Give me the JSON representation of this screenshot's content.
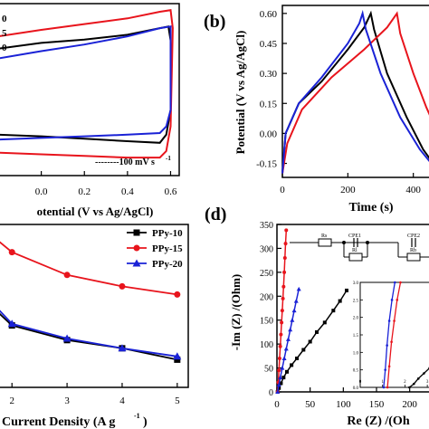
{
  "colors": {
    "black": "#000000",
    "red": "#e8141c",
    "blue": "#1a22d6"
  },
  "chart_data": [
    {
      "panel": "a",
      "type": "line",
      "xlabel": "otential (V vs Ag/AgCl)",
      "xticks": [
        "0.0",
        "0.2",
        "0.4",
        "0.6"
      ],
      "xlim": [
        -0.2,
        0.64
      ],
      "ylim": [
        -1.1,
        1.0
      ],
      "annotation": "--------100 mV s",
      "annotation_sup": "-1",
      "legend_fragments": [
        "0",
        "5",
        "0"
      ],
      "series": [
        {
          "name": "PPy-10",
          "color": "black",
          "loop": [
            [
              -0.2,
              0.45
            ],
            [
              0.0,
              0.52
            ],
            [
              0.2,
              0.56
            ],
            [
              0.4,
              0.62
            ],
            [
              0.55,
              0.7
            ],
            [
              0.59,
              0.72
            ],
            [
              0.6,
              0.55
            ],
            [
              0.6,
              -0.3
            ],
            [
              0.58,
              -0.6
            ],
            [
              0.55,
              -0.7
            ],
            [
              0.4,
              -0.68
            ],
            [
              0.2,
              -0.65
            ],
            [
              0.0,
              -0.62
            ],
            [
              -0.2,
              -0.6
            ]
          ]
        },
        {
          "name": "PPy-15",
          "color": "red",
          "loop": [
            [
              -0.2,
              0.6
            ],
            [
              0.0,
              0.68
            ],
            [
              0.2,
              0.75
            ],
            [
              0.4,
              0.82
            ],
            [
              0.55,
              0.9
            ],
            [
              0.6,
              0.92
            ],
            [
              0.61,
              0.7
            ],
            [
              0.6,
              -0.5
            ],
            [
              0.58,
              -0.8
            ],
            [
              0.55,
              -0.88
            ],
            [
              0.4,
              -0.88
            ],
            [
              0.2,
              -0.86
            ],
            [
              0.0,
              -0.84
            ],
            [
              -0.2,
              -0.82
            ]
          ]
        },
        {
          "name": "PPy-20",
          "color": "blue",
          "loop": [
            [
              -0.2,
              0.33
            ],
            [
              0.0,
              0.42
            ],
            [
              0.2,
              0.5
            ],
            [
              0.4,
              0.6
            ],
            [
              0.55,
              0.7
            ],
            [
              0.6,
              0.72
            ],
            [
              0.6,
              0.5
            ],
            [
              0.6,
              -0.3
            ],
            [
              0.58,
              -0.5
            ],
            [
              0.55,
              -0.58
            ],
            [
              0.4,
              -0.6
            ],
            [
              0.2,
              -0.62
            ],
            [
              0.0,
              -0.64
            ],
            [
              -0.2,
              -0.66
            ]
          ]
        }
      ]
    },
    {
      "panel": "b",
      "type": "line",
      "ylabel": "Potential (V vs Ag/AgCl)",
      "xlabel": "Time (s)",
      "yticks": [
        "0.60",
        "0.45",
        "0.30",
        "0.15",
        "0.00",
        "-0.15"
      ],
      "xticks": [
        "0",
        "200",
        "400"
      ],
      "xlim": [
        0,
        470
      ],
      "ylim": [
        -0.22,
        0.64
      ],
      "series": [
        {
          "name": "PPy-10",
          "color": "black",
          "points": [
            [
              0,
              -0.2
            ],
            [
              10,
              0.0
            ],
            [
              50,
              0.15
            ],
            [
              120,
              0.26
            ],
            [
              200,
              0.42
            ],
            [
              250,
              0.53
            ],
            [
              270,
              0.6
            ],
            [
              280,
              0.52
            ],
            [
              320,
              0.3
            ],
            [
              380,
              0.08
            ],
            [
              430,
              -0.08
            ],
            [
              470,
              -0.17
            ]
          ]
        },
        {
          "name": "PPy-15",
          "color": "red",
          "points": [
            [
              0,
              -0.2
            ],
            [
              15,
              -0.05
            ],
            [
              60,
              0.12
            ],
            [
              150,
              0.28
            ],
            [
              250,
              0.42
            ],
            [
              320,
              0.53
            ],
            [
              350,
              0.6
            ],
            [
              360,
              0.5
            ],
            [
              400,
              0.3
            ],
            [
              440,
              0.13
            ],
            [
              470,
              0.02
            ]
          ]
        },
        {
          "name": "PPy-20",
          "color": "blue",
          "points": [
            [
              0,
              -0.2
            ],
            [
              10,
              0.0
            ],
            [
              50,
              0.15
            ],
            [
              120,
              0.28
            ],
            [
              200,
              0.45
            ],
            [
              235,
              0.55
            ],
            [
              245,
              0.6
            ],
            [
              255,
              0.52
            ],
            [
              300,
              0.3
            ],
            [
              360,
              0.08
            ],
            [
              420,
              -0.08
            ],
            [
              470,
              -0.18
            ]
          ]
        }
      ]
    },
    {
      "panel": "c",
      "type": "line",
      "xlabel": "Current Density (A g",
      "xlabel_sup": "-1",
      "xlabel_tail": ")",
      "xticks": [
        "2",
        "3",
        "4",
        "5"
      ],
      "xlim": [
        1.75,
        5.2
      ],
      "ylim": [
        0,
        10
      ],
      "legend": [
        "PPy-10",
        "PPy-15",
        "PPy-20"
      ],
      "series": [
        {
          "name": "PPy-10",
          "color": "black",
          "marker": "square",
          "x": [
            1.75,
            2,
            3,
            4,
            5
          ],
          "y": [
            4.6,
            3.8,
            2.9,
            2.4,
            1.7
          ]
        },
        {
          "name": "PPy-15",
          "color": "red",
          "marker": "circle",
          "x": [
            1.75,
            2,
            3,
            4,
            5
          ],
          "y": [
            9.0,
            8.3,
            6.9,
            6.2,
            5.7
          ]
        },
        {
          "name": "PPy-20",
          "color": "blue",
          "marker": "triangle",
          "x": [
            1.75,
            2,
            3,
            4,
            5
          ],
          "y": [
            4.8,
            3.9,
            3.0,
            2.4,
            1.9
          ]
        }
      ]
    },
    {
      "panel": "d",
      "type": "scatter",
      "ylabel": "-Im (Z) /(Ohm)",
      "xlabel": "Re (Z) /(Oh",
      "yticks": [
        "350",
        "300",
        "250",
        "200",
        "150",
        "100",
        "50",
        "0"
      ],
      "xticks": [
        "0",
        "50",
        "100",
        "150",
        "200"
      ],
      "xlim": [
        0,
        240
      ],
      "ylim": [
        0,
        350
      ],
      "circuit_labels": [
        "Rs",
        "CPE1",
        "Rl",
        "CPE2",
        "Rb"
      ],
      "inset": {
        "yticks": [
          "3.0",
          "2.5",
          "2.0",
          "1.5",
          "1.0",
          "0.5",
          "0.0"
        ],
        "xticks": [
          "0",
          "1",
          "2",
          "3"
        ],
        "xlim": [
          0,
          3.4
        ],
        "ylim": [
          0,
          3.0
        ]
      },
      "series": [
        {
          "name": "PPy-10",
          "color": "black",
          "x": [
            1,
            3,
            6,
            10,
            15,
            22,
            30,
            40,
            50,
            60,
            72,
            85,
            95,
            105
          ],
          "y": [
            0,
            8,
            18,
            30,
            42,
            56,
            70,
            88,
            105,
            125,
            145,
            170,
            190,
            212
          ]
        },
        {
          "name": "PPy-15",
          "color": "red",
          "x": [
            1,
            2,
            3,
            4,
            5,
            6,
            7,
            8,
            9,
            10,
            11,
            12,
            13,
            14
          ],
          "y": [
            0,
            20,
            45,
            70,
            95,
            120,
            145,
            170,
            195,
            220,
            250,
            280,
            310,
            338
          ]
        },
        {
          "name": "PPy-20",
          "color": "blue",
          "x": [
            1,
            3,
            5,
            8,
            11,
            14,
            17,
            20,
            23,
            26,
            29,
            33
          ],
          "y": [
            0,
            15,
            30,
            50,
            70,
            90,
            110,
            130,
            150,
            170,
            190,
            215
          ]
        }
      ]
    }
  ],
  "panel_labels": {
    "b": "(b)",
    "d": "(d)"
  }
}
